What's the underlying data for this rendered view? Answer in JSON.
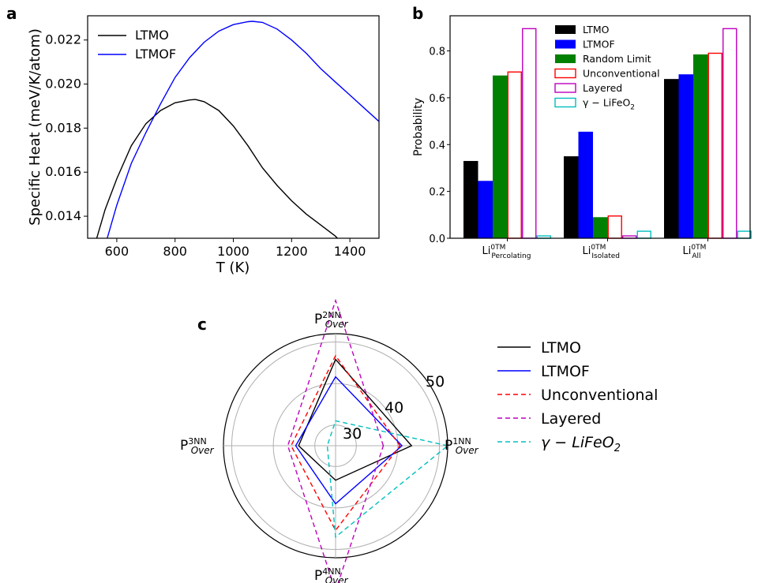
{
  "panels": {
    "a": "a",
    "b": "b",
    "c": "c"
  },
  "chart_data": [
    {
      "id": "a",
      "type": "line",
      "xlabel": "T (K)",
      "ylabel": "Specific Heat (meV/K/atom)",
      "xlim": [
        500,
        1500
      ],
      "ylim": [
        0.013,
        0.0231
      ],
      "x_ticks": [
        600,
        800,
        1000,
        1200,
        1400
      ],
      "y_ticks": [
        0.014,
        0.016,
        0.018,
        0.02,
        0.022
      ],
      "y_tick_labels": [
        "0.014",
        "0.016",
        "0.018",
        "0.020",
        "0.022"
      ],
      "legend_position": "top-left",
      "series": [
        {
          "name": "LTMO",
          "color": "#000000",
          "x": [
            520,
            560,
            600,
            650,
            700,
            750,
            800,
            850,
            870,
            900,
            950,
            1000,
            1050,
            1100,
            1150,
            1200,
            1250,
            1300,
            1350,
            1365
          ],
          "y": [
            0.0125,
            0.0143,
            0.0157,
            0.0172,
            0.0182,
            0.0188,
            0.01915,
            0.01928,
            0.0193,
            0.0192,
            0.0188,
            0.0181,
            0.0172,
            0.0162,
            0.0154,
            0.0147,
            0.0141,
            0.0136,
            0.0131,
            0.0129
          ]
        },
        {
          "name": "LTMOF",
          "color": "#0000ff",
          "x": [
            565,
            600,
            650,
            700,
            750,
            800,
            850,
            900,
            950,
            1000,
            1050,
            1065,
            1100,
            1150,
            1200,
            1250,
            1300,
            1350,
            1400,
            1450,
            1500
          ],
          "y": [
            0.0129,
            0.0145,
            0.0164,
            0.0178,
            0.0191,
            0.0203,
            0.0212,
            0.0219,
            0.0224,
            0.0227,
            0.02283,
            0.02285,
            0.0228,
            0.0225,
            0.022,
            0.0214,
            0.0207,
            0.0201,
            0.0195,
            0.0189,
            0.0183
          ]
        }
      ]
    },
    {
      "id": "b",
      "type": "bar",
      "ylabel": "Probability",
      "ylim": [
        0,
        0.95
      ],
      "y_ticks": [
        0.0,
        0.2,
        0.4,
        0.6,
        0.8
      ],
      "y_tick_labels": [
        "0.0",
        "0.2",
        "0.4",
        "0.6",
        "0.8"
      ],
      "categories": [
        {
          "base": "Li",
          "sup": "0TM",
          "sub": "Percolating"
        },
        {
          "base": "Li",
          "sup": "0TM",
          "sub": "Isolated"
        },
        {
          "base": "Li",
          "sup": "0TM",
          "sub": "All"
        }
      ],
      "legend_position": "top-right",
      "series": [
        {
          "name": "LTMO",
          "color": "#000000",
          "style": "filled",
          "values": [
            0.33,
            0.35,
            0.68
          ]
        },
        {
          "name": "LTMOF",
          "color": "#0000ff",
          "style": "filled",
          "values": [
            0.245,
            0.455,
            0.7
          ]
        },
        {
          "name": "Random Limit",
          "color": "#008000",
          "style": "filled",
          "values": [
            0.695,
            0.09,
            0.785
          ]
        },
        {
          "name": "Unconventional",
          "color": "#ff0000",
          "style": "outline",
          "values": [
            0.71,
            0.095,
            0.79
          ]
        },
        {
          "name": "Layered",
          "color": "#bf00bf",
          "style": "outline",
          "values": [
            0.895,
            0.01,
            0.895
          ]
        },
        {
          "name": "γ − LiFeO",
          "name_sub": "2",
          "color": "#00bfbf",
          "style": "outline",
          "values": [
            0.01,
            0.03,
            0.03
          ]
        }
      ]
    },
    {
      "id": "c",
      "type": "radar",
      "r_range": [
        25,
        52
      ],
      "r_ticks": [
        30,
        40,
        50
      ],
      "r_tick_labels": [
        "30",
        "40",
        "50"
      ],
      "axes": [
        {
          "base": "P",
          "sup": "1NN",
          "sub": "Over"
        },
        {
          "base": "P",
          "sup": "2NN",
          "sub": "Over"
        },
        {
          "base": "P",
          "sup": "3NN",
          "sub": "Over"
        },
        {
          "base": "P",
          "sup": "4NN",
          "sub": "Over"
        }
      ],
      "legend_position": "right",
      "series": [
        {
          "name": "LTMO",
          "color": "#000000",
          "dash": "solid",
          "values": [
            43.3,
            45.8,
            33.9,
            33.3
          ]
        },
        {
          "name": "LTMOF",
          "color": "#0000ff",
          "dash": "solid",
          "values": [
            41.0,
            41.6,
            34.6,
            39.0
          ]
        },
        {
          "name": "Unconventional",
          "color": "#ff0000",
          "dash": "dashed",
          "values": [
            40.5,
            46.7,
            35.7,
            45.4
          ]
        },
        {
          "name": "Layered",
          "color": "#bf00bf",
          "dash": "dashed",
          "values": [
            36.5,
            60.0,
            36.5,
            60.0
          ]
        },
        {
          "name": "γ − LiFeO",
          "name_sub": "2",
          "color": "#00bfbf",
          "dash": "dashed",
          "values": [
            52.0,
            31.0,
            27.0,
            47.0
          ]
        }
      ]
    }
  ]
}
